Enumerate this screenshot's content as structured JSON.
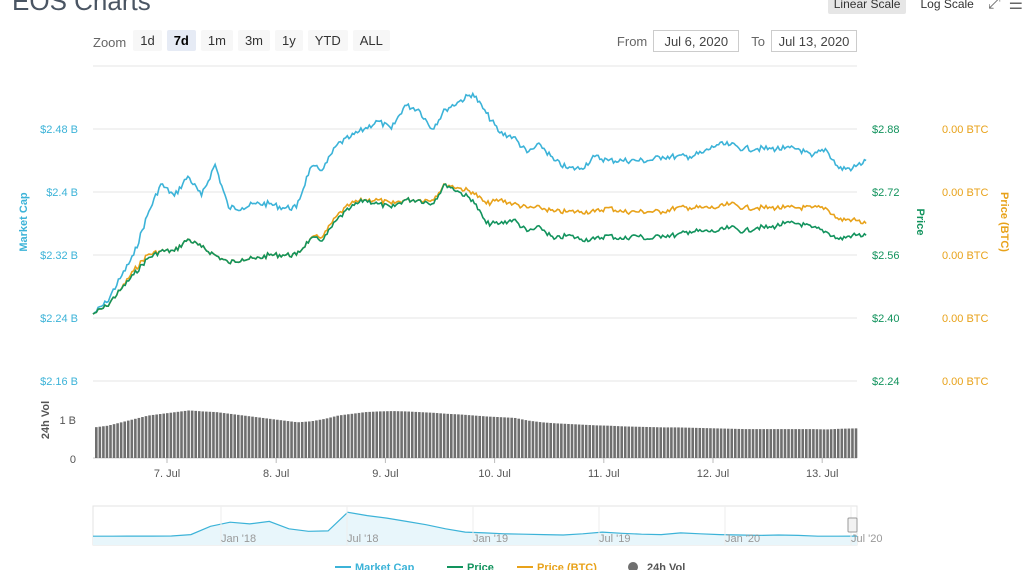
{
  "header": {
    "title": "EOS Charts"
  },
  "scale": {
    "linear": "Linear Scale",
    "log": "Log Scale",
    "expand_icon": "expand-icon",
    "menu_icon": "hamburger-menu-icon"
  },
  "zoom": {
    "label": "Zoom",
    "options": [
      "1d",
      "7d",
      "1m",
      "3m",
      "1y",
      "YTD",
      "ALL"
    ],
    "active": "7d"
  },
  "range": {
    "from_label": "From",
    "from_value": "Jul 6, 2020",
    "to_label": "To",
    "to_value": "Jul 13, 2020"
  },
  "colors": {
    "market_cap": "#3cb3d8",
    "price": "#12935d",
    "price_btc": "#e8a21a",
    "volume": "#6f6f6f",
    "grid": "#e6e6e6"
  },
  "chart_data": {
    "type": "line",
    "x_ticks": [
      "7. Jul",
      "8. Jul",
      "9. Jul",
      "10. Jul",
      "11. Jul",
      "12. Jul",
      "13. Jul"
    ],
    "left_axis": {
      "title": "Market Cap",
      "ticks": [
        "$2.48 B",
        "$2.4 B",
        "$2.32 B",
        "$2.24 B",
        "$2.16 B"
      ],
      "values": [
        2.48,
        2.4,
        2.32,
        2.24,
        2.16
      ]
    },
    "right_axis_price": {
      "title": "Price",
      "ticks": [
        "$2.88",
        "$2.72",
        "$2.56",
        "$2.40",
        "$2.24"
      ],
      "values": [
        2.88,
        2.72,
        2.56,
        2.4,
        2.24
      ]
    },
    "right_axis_btc": {
      "title": "Price (BTC)",
      "ticks": [
        "0.00 BTC",
        "0.00 BTC",
        "0.00 BTC",
        "0.00 BTC",
        "0.00 BTC"
      ]
    },
    "volume_axis": {
      "title": "24h Vol",
      "ticks": [
        "1 B",
        "0"
      ]
    },
    "x_days": [
      0,
      0.125,
      0.25,
      0.375,
      0.5,
      0.625,
      0.75,
      0.875,
      1,
      1.125,
      1.25,
      1.375,
      1.5,
      1.625,
      1.75,
      1.875,
      2,
      2.125,
      2.25,
      2.375,
      2.5,
      2.625,
      2.75,
      2.875,
      3,
      3.125,
      3.25,
      3.375,
      3.5,
      3.625,
      3.75,
      3.875,
      4,
      4.125,
      4.25,
      4.375,
      4.5,
      4.625,
      4.75,
      4.875,
      5,
      5.125,
      5.25,
      5.375,
      5.5,
      5.625,
      5.75,
      5.875,
      6,
      6.125,
      6.25,
      6.375,
      6.5,
      6.625,
      6.75,
      6.875,
      7,
      7.125
    ],
    "series": [
      {
        "name": "Market Cap",
        "axis": "left",
        "unit": "B USD",
        "values": [
          2.245,
          2.26,
          2.29,
          2.32,
          2.37,
          2.41,
          2.395,
          2.42,
          2.395,
          2.435,
          2.38,
          2.38,
          2.385,
          2.385,
          2.38,
          2.38,
          2.43,
          2.43,
          2.46,
          2.47,
          2.48,
          2.49,
          2.48,
          2.51,
          2.505,
          2.48,
          2.505,
          2.515,
          2.525,
          2.5,
          2.475,
          2.47,
          2.45,
          2.46,
          2.44,
          2.43,
          2.43,
          2.445,
          2.44,
          2.44,
          2.44,
          2.44,
          2.445,
          2.445,
          2.445,
          2.45,
          2.46,
          2.46,
          2.455,
          2.455,
          2.455,
          2.455,
          2.455,
          2.445,
          2.455,
          2.43,
          2.43,
          2.44
        ]
      },
      {
        "name": "Price",
        "axis": "right_price",
        "unit": "USD",
        "values": [
          2.41,
          2.43,
          2.47,
          2.51,
          2.55,
          2.57,
          2.57,
          2.6,
          2.58,
          2.56,
          2.54,
          2.55,
          2.55,
          2.56,
          2.56,
          2.56,
          2.6,
          2.6,
          2.65,
          2.68,
          2.7,
          2.69,
          2.68,
          2.7,
          2.7,
          2.69,
          2.74,
          2.72,
          2.7,
          2.64,
          2.64,
          2.65,
          2.62,
          2.63,
          2.6,
          2.61,
          2.6,
          2.6,
          2.61,
          2.6,
          2.61,
          2.6,
          2.61,
          2.61,
          2.62,
          2.62,
          2.62,
          2.63,
          2.62,
          2.63,
          2.63,
          2.64,
          2.64,
          2.63,
          2.62,
          2.6,
          2.61,
          2.61
        ]
      },
      {
        "name": "Price (BTC)",
        "axis": "right_btc",
        "unit": "BTC (relative)",
        "values": [
          2.41,
          2.43,
          2.47,
          2.52,
          2.56,
          2.57,
          2.57,
          2.6,
          2.58,
          2.56,
          2.54,
          2.55,
          2.55,
          2.56,
          2.56,
          2.56,
          2.6,
          2.61,
          2.66,
          2.69,
          2.7,
          2.7,
          2.69,
          2.7,
          2.7,
          2.7,
          2.74,
          2.73,
          2.72,
          2.69,
          2.7,
          2.69,
          2.68,
          2.68,
          2.67,
          2.67,
          2.67,
          2.67,
          2.68,
          2.67,
          2.67,
          2.67,
          2.67,
          2.68,
          2.68,
          2.68,
          2.68,
          2.69,
          2.68,
          2.68,
          2.68,
          2.68,
          2.68,
          2.68,
          2.68,
          2.65,
          2.65,
          2.64
        ]
      },
      {
        "name": "24h Vol",
        "axis": "volume",
        "unit": "B USD",
        "values": [
          0.9,
          0.95,
          1.05,
          1.15,
          1.25,
          1.3,
          1.35,
          1.4,
          1.37,
          1.35,
          1.3,
          1.25,
          1.2,
          1.15,
          1.1,
          1.05,
          1.08,
          1.15,
          1.25,
          1.3,
          1.35,
          1.37,
          1.38,
          1.37,
          1.35,
          1.33,
          1.3,
          1.28,
          1.25,
          1.22,
          1.2,
          1.18,
          1.1,
          1.05,
          1.02,
          1.0,
          0.98,
          0.96,
          0.95,
          0.93,
          0.92,
          0.91,
          0.9,
          0.9,
          0.89,
          0.88,
          0.87,
          0.86,
          0.85,
          0.85,
          0.85,
          0.85,
          0.85,
          0.85,
          0.84,
          0.86,
          0.87,
          0.88
        ]
      }
    ],
    "navigator": {
      "labels": [
        "Jan '18",
        "Jul '18",
        "Jan '19",
        "Jul '19",
        "Jan '20",
        "Jul '20"
      ],
      "values": [
        0.7,
        0.7,
        0.72,
        0.72,
        0.73,
        0.9,
        1.9,
        2.4,
        2.2,
        2.5,
        1.6,
        1.3,
        1.35,
        3.6,
        3.2,
        2.9,
        2.5,
        2.1,
        1.6,
        1.2,
        1.1,
        1.0,
        0.95,
        0.9,
        0.85,
        1.0,
        1.2,
        1.05,
        0.95,
        0.9,
        1.1,
        1.0,
        0.9,
        0.85,
        0.8,
        0.85,
        0.8,
        0.7,
        0.7,
        0.72
      ]
    },
    "legend": [
      "Market Cap",
      "Price",
      "Price (BTC)",
      "24h Vol"
    ],
    "legend_position": "bottom",
    "grid": true
  }
}
